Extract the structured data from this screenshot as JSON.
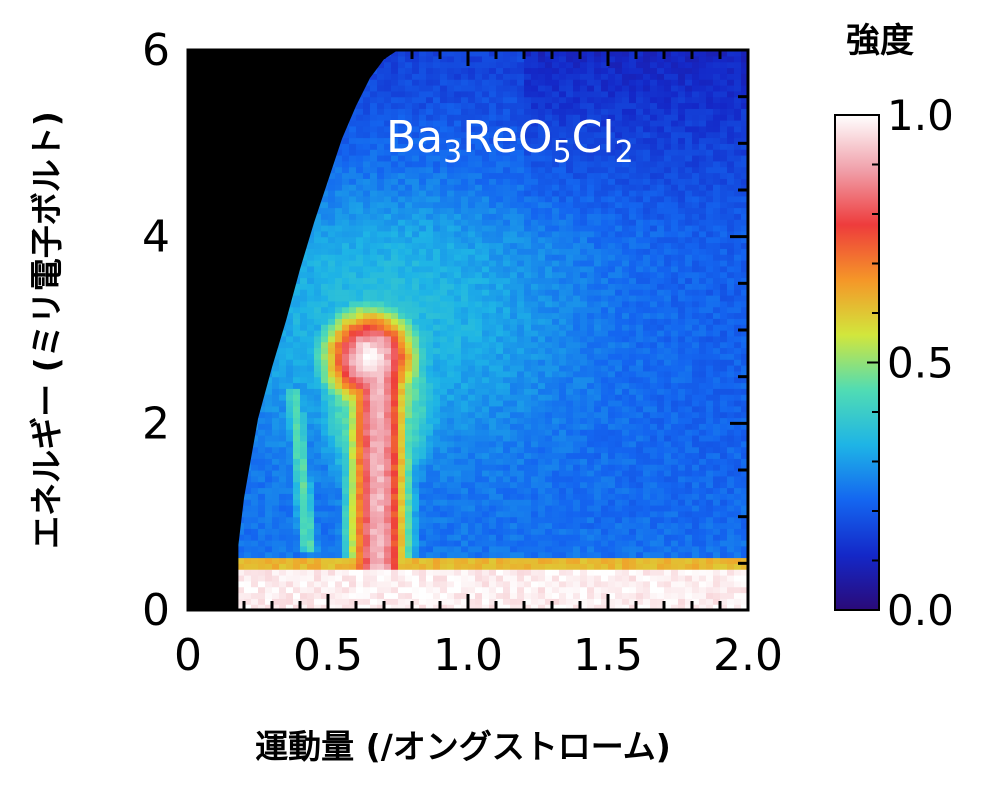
{
  "chart_data": {
    "type": "heatmap",
    "title": "",
    "annotation": {
      "text": "Ba3ReO5Cl2",
      "parts": [
        {
          "t": "Ba",
          "sub": false
        },
        {
          "t": "3",
          "sub": true
        },
        {
          "t": "ReO",
          "sub": false
        },
        {
          "t": "5",
          "sub": true
        },
        {
          "t": "Cl",
          "sub": false
        },
        {
          "t": "2",
          "sub": true
        }
      ],
      "color": "#ffffff"
    },
    "xlabel": "運動量 (/オングストローム)",
    "ylabel": "エネルギー (ミリ電子ボルト)",
    "xlim": [
      0,
      2.0
    ],
    "ylim": [
      0,
      6
    ],
    "xticks": [
      0,
      0.5,
      1.0,
      1.5,
      2.0
    ],
    "xtick_labels": [
      "0",
      "0.5",
      "1.0",
      "1.5",
      "2.0"
    ],
    "yticks": [
      0,
      2,
      4,
      6
    ],
    "ytick_labels": [
      "0",
      "2",
      "4",
      "6"
    ],
    "x_minor_step": 0.1,
    "y_minor_step": 0.5,
    "colorbar": {
      "title": "強度",
      "range": [
        0.0,
        1.0
      ],
      "ticks": [
        0.0,
        0.5,
        1.0
      ],
      "tick_labels": [
        "0.0",
        "0.5",
        "1.0"
      ],
      "colormap": [
        "#2a0a78",
        "#1428c8",
        "#1466f0",
        "#1eb4e6",
        "#50dcb4",
        "#d2e63c",
        "#f59628",
        "#ee3c3c",
        "#f0a0aa",
        "#ffffff"
      ]
    },
    "no_data_color": "#000000",
    "no_data_boundary": {
      "q": [
        0.18,
        0.18,
        0.2,
        0.25,
        0.3,
        0.35,
        0.4,
        0.45,
        0.5,
        0.55,
        0.6,
        0.65,
        0.7,
        0.75,
        0.8
      ],
      "energy": [
        0.0,
        0.7,
        1.2,
        2.05,
        2.6,
        3.1,
        3.65,
        4.15,
        4.6,
        5.05,
        5.4,
        5.7,
        5.9,
        6.0,
        6.0
      ]
    },
    "features": {
      "elastic_line_energy": 0.4,
      "intense_excitation": {
        "q_center": 0.68,
        "energy_range": [
          0.4,
          3.2
        ],
        "peak_intensity": 1.0
      },
      "top_lobe": {
        "q_center": 0.65,
        "energy": 2.7,
        "intensity": 1.0
      },
      "background_intensity": 0.2
    }
  }
}
